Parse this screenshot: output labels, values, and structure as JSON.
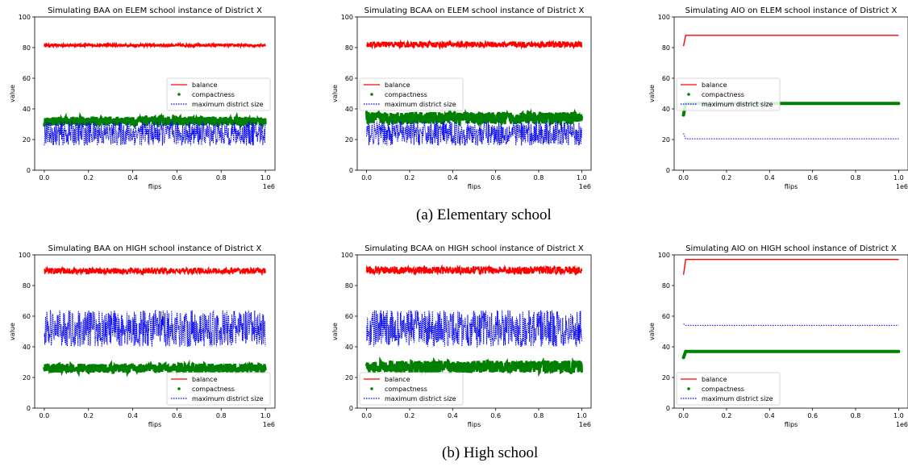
{
  "captions": [
    "(a) Elementary school",
    "(b) High school"
  ],
  "colors": {
    "balance": "#ff0000",
    "compactness": "#008000",
    "max_size": "#0000ff"
  },
  "chart_data": [
    {
      "type": "line",
      "title": "Simulating BAA on ELEM school instance of District X",
      "xlabel": "flips",
      "ylabel": "value",
      "x_multiplier": "1e6",
      "xlim": [
        0,
        1.0
      ],
      "ylim": [
        0,
        100
      ],
      "xticks": [
        "0.0",
        "0.2",
        "0.4",
        "0.6",
        "0.8",
        "1.0"
      ],
      "yticks": [
        "0",
        "20",
        "40",
        "60",
        "80",
        "100"
      ],
      "legend": "center-right",
      "series": [
        {
          "name": "balance",
          "style": "solid",
          "color": "#ff0000",
          "mean": 81.5,
          "spread": 0.9,
          "x": [
            0.0,
            1.0
          ],
          "y": [
            81.5,
            81.5
          ]
        },
        {
          "name": "compactness",
          "style": "dots",
          "color": "#008000",
          "mean": 32,
          "spread": 3,
          "x": [
            0.0,
            1.0
          ],
          "y": [
            32,
            32
          ]
        },
        {
          "name": "maximum district size",
          "style": "dotted",
          "color": "#0000ff",
          "mean": 24,
          "spread": 8,
          "x": [
            0.0,
            1.0
          ],
          "y": [
            24,
            24
          ]
        }
      ]
    },
    {
      "type": "line",
      "title": "Simulating BCAA on ELEM school instance of District X",
      "xlabel": "flips",
      "ylabel": "value",
      "x_multiplier": "1e6",
      "xlim": [
        0,
        1.0
      ],
      "ylim": [
        0,
        100
      ],
      "xticks": [
        "0.0",
        "0.2",
        "0.4",
        "0.6",
        "0.8",
        "1.0"
      ],
      "yticks": [
        "0",
        "20",
        "40",
        "60",
        "80",
        "100"
      ],
      "legend": "center-left",
      "series": [
        {
          "name": "balance",
          "style": "solid",
          "color": "#ff0000",
          "mean": 82,
          "spread": 2,
          "x": [
            0.0,
            1.0
          ],
          "y": [
            82,
            82
          ]
        },
        {
          "name": "compactness",
          "style": "dots",
          "color": "#008000",
          "mean": 34,
          "spread": 4,
          "x": [
            0.0,
            1.0
          ],
          "y": [
            34,
            34
          ]
        },
        {
          "name": "maximum district size",
          "style": "dotted",
          "color": "#0000ff",
          "mean": 24,
          "spread": 8,
          "x": [
            0.0,
            1.0
          ],
          "y": [
            24,
            24
          ]
        }
      ]
    },
    {
      "type": "line",
      "title": "Simulating AIO on ELEM school instance of District X",
      "xlabel": "flips",
      "ylabel": "value",
      "x_multiplier": "1e6",
      "xlim": [
        0,
        1.0
      ],
      "ylim": [
        0,
        100
      ],
      "xticks": [
        "0.0",
        "0.2",
        "0.4",
        "0.6",
        "0.8",
        "1.0"
      ],
      "yticks": [
        "0",
        "20",
        "40",
        "60",
        "80",
        "100"
      ],
      "legend": "center-left",
      "series": [
        {
          "name": "balance",
          "style": "solid",
          "color": "#ff0000",
          "x": [
            0.0,
            0.01,
            1.0
          ],
          "y": [
            81,
            88,
            88
          ]
        },
        {
          "name": "compactness",
          "style": "dots",
          "color": "#008000",
          "x": [
            0.0,
            0.01,
            1.0
          ],
          "y": [
            36,
            43.5,
            43.5
          ]
        },
        {
          "name": "maximum district size",
          "style": "dotted",
          "color": "#0000ff",
          "x": [
            0.0,
            0.01,
            1.0
          ],
          "y": [
            24,
            20.5,
            20.5
          ]
        }
      ]
    },
    {
      "type": "line",
      "title": "Simulating BAA on HIGH school instance of District X",
      "xlabel": "flips",
      "ylabel": "value",
      "x_multiplier": "1e6",
      "xlim": [
        0,
        1.0
      ],
      "ylim": [
        0,
        100
      ],
      "xticks": [
        "0.0",
        "0.2",
        "0.4",
        "0.6",
        "0.8",
        "1.0"
      ],
      "yticks": [
        "0",
        "20",
        "40",
        "60",
        "80",
        "100"
      ],
      "legend": "lower-right",
      "series": [
        {
          "name": "balance",
          "style": "solid",
          "color": "#ff0000",
          "mean": 89.5,
          "spread": 2,
          "x": [
            0.0,
            1.0
          ],
          "y": [
            89.5,
            89.5
          ]
        },
        {
          "name": "compactness",
          "style": "dots",
          "color": "#008000",
          "mean": 26,
          "spread": 3,
          "x": [
            0.0,
            1.0
          ],
          "y": [
            26,
            26
          ]
        },
        {
          "name": "maximum district size",
          "style": "dotted",
          "color": "#0000ff",
          "mean": 52,
          "spread": 12,
          "x": [
            0.0,
            1.0
          ],
          "y": [
            52,
            52
          ]
        }
      ]
    },
    {
      "type": "line",
      "title": "Simulating BCAA on HIGH school instance of District X",
      "xlabel": "flips",
      "ylabel": "value",
      "x_multiplier": "1e6",
      "xlim": [
        0,
        1.0
      ],
      "ylim": [
        0,
        100
      ],
      "xticks": [
        "0.0",
        "0.2",
        "0.4",
        "0.6",
        "0.8",
        "1.0"
      ],
      "yticks": [
        "0",
        "20",
        "40",
        "60",
        "80",
        "100"
      ],
      "legend": "lower-left",
      "series": [
        {
          "name": "balance",
          "style": "solid",
          "color": "#ff0000",
          "mean": 90,
          "spread": 2.5,
          "x": [
            0.0,
            1.0
          ],
          "y": [
            90,
            90
          ]
        },
        {
          "name": "compactness",
          "style": "dots",
          "color": "#008000",
          "mean": 27,
          "spread": 4,
          "x": [
            0.0,
            1.0
          ],
          "y": [
            27,
            27
          ]
        },
        {
          "name": "maximum district size",
          "style": "dotted",
          "color": "#0000ff",
          "mean": 52,
          "spread": 12,
          "x": [
            0.0,
            1.0
          ],
          "y": [
            52,
            52
          ]
        }
      ]
    },
    {
      "type": "line",
      "title": "Simulating AIO on HIGH school instance of District X",
      "xlabel": "flips",
      "ylabel": "value",
      "x_multiplier": "1e6",
      "xlim": [
        0,
        1.0
      ],
      "ylim": [
        0,
        100
      ],
      "xticks": [
        "0.0",
        "0.2",
        "0.4",
        "0.6",
        "0.8",
        "1.0"
      ],
      "yticks": [
        "0",
        "20",
        "40",
        "60",
        "80",
        "100"
      ],
      "legend": "lower-left",
      "series": [
        {
          "name": "balance",
          "style": "solid",
          "color": "#ff0000",
          "x": [
            0.0,
            0.01,
            1.0
          ],
          "y": [
            87,
            97,
            97
          ]
        },
        {
          "name": "compactness",
          "style": "dots",
          "color": "#008000",
          "x": [
            0.0,
            0.01,
            1.0
          ],
          "y": [
            33,
            37,
            37
          ]
        },
        {
          "name": "maximum district size",
          "style": "dotted",
          "color": "#0000ff",
          "x": [
            0.0,
            0.01,
            1.0
          ],
          "y": [
            55,
            54,
            54
          ]
        }
      ]
    }
  ]
}
